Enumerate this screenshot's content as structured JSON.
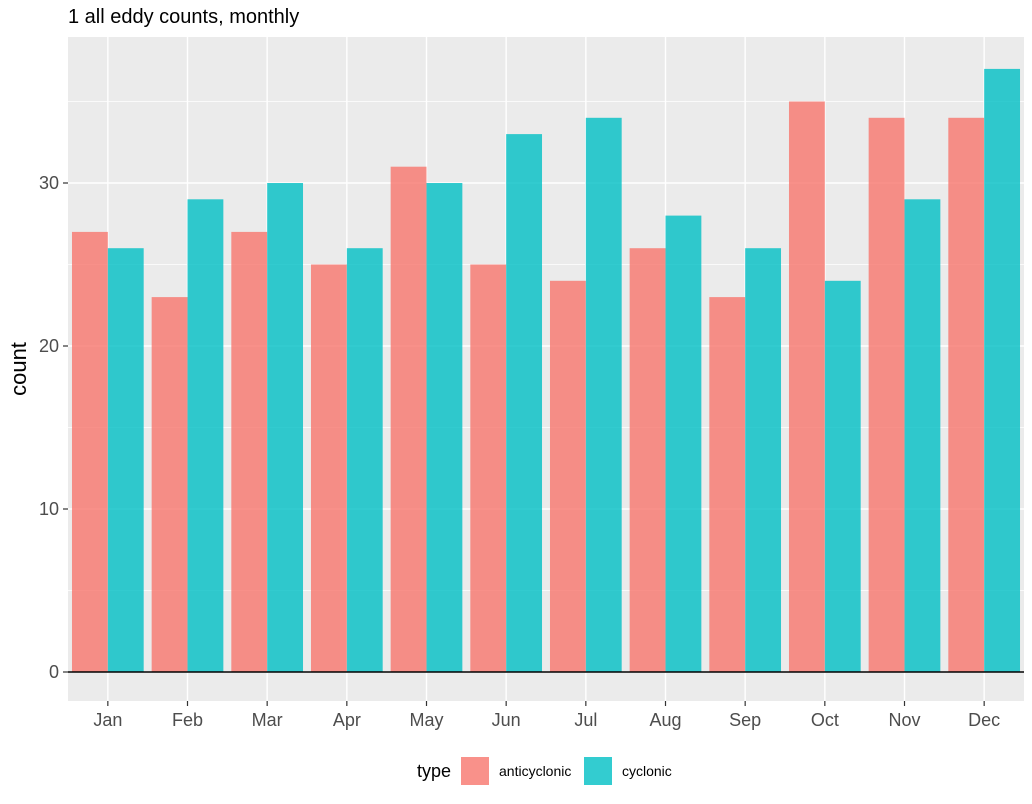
{
  "chart_data": {
    "type": "bar",
    "title": "1 all eddy counts, monthly",
    "xlabel": "",
    "ylabel": "count",
    "categories": [
      "Jan",
      "Feb",
      "Mar",
      "Apr",
      "May",
      "Jun",
      "Jul",
      "Aug",
      "Sep",
      "Oct",
      "Nov",
      "Dec"
    ],
    "series": [
      {
        "name": "anticyclonic",
        "color": "#F8766D",
        "values": [
          27,
          23,
          27,
          25,
          31,
          25,
          24,
          26,
          23,
          35,
          34,
          34
        ]
      },
      {
        "name": "cyclonic",
        "color": "#00BFC4",
        "values": [
          26,
          29,
          30,
          26,
          30,
          33,
          34,
          28,
          26,
          24,
          29,
          37
        ]
      }
    ],
    "ylim": [
      -2,
      39
    ],
    "yticks": [
      0,
      10,
      20,
      30
    ],
    "grid": true,
    "panel_background": "#EBEBEB",
    "legend": {
      "title": "type",
      "position": "bottom"
    }
  }
}
